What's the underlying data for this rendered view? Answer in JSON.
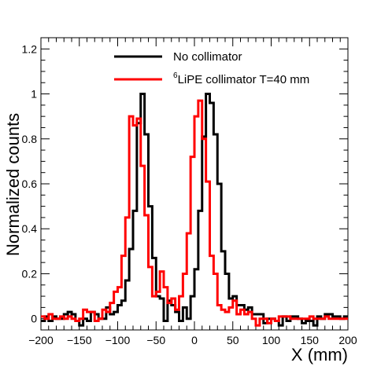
{
  "chart_data": {
    "type": "line",
    "xlabel": "X (mm)",
    "ylabel": "Normalized counts",
    "xlim": [
      -200,
      200
    ],
    "ylim": [
      -0.05,
      1.25
    ],
    "x_ticks": [
      -200,
      -150,
      -100,
      -50,
      0,
      50,
      100,
      150,
      200
    ],
    "x_tick_labels": [
      "−200",
      "−150",
      "−100",
      "−50",
      "0",
      "50",
      "100",
      "150",
      "200"
    ],
    "y_ticks": [
      0,
      0.2,
      0.4,
      0.6,
      0.8,
      1,
      1.2
    ],
    "y_tick_labels": [
      "0",
      "0.2",
      "0.4",
      "0.6",
      "0.8",
      "1",
      "1.2"
    ],
    "legend_placement": "top-center",
    "bin_width": 5,
    "bin_start": -200,
    "series": [
      {
        "name": "No collimator",
        "legend_label": "No collimator",
        "color": "#000000",
        "values": [
          -0.01,
          0.01,
          -0.01,
          0.01,
          0.0,
          0.0,
          0.02,
          0.03,
          0.02,
          -0.01,
          -0.03,
          0.0,
          -0.01,
          0.03,
          0.02,
          0.0,
          0.0,
          0.05,
          0.02,
          0.03,
          0.06,
          0.08,
          0.17,
          0.31,
          0.48,
          0.87,
          1.0,
          0.82,
          0.5,
          0.27,
          0.1,
          0.09,
          -0.01,
          0.08,
          0.06,
          0.03,
          -0.01,
          0.05,
          0.0,
          0.1,
          0.22,
          0.48,
          0.81,
          1.0,
          0.96,
          0.82,
          0.6,
          0.3,
          0.2,
          0.09,
          0.1,
          0.06,
          0.06,
          0.04,
          0.05,
          0.02,
          0.02,
          0.02,
          -0.02,
          0.0,
          0.0,
          -0.01,
          -0.03,
          0.01,
          -0.01,
          0.01,
          0.01,
          0.0,
          -0.02,
          -0.01,
          -0.01,
          -0.03,
          0.01,
          0.0,
          0.02,
          0.02,
          0.01,
          0.01,
          0.0,
          0.01
        ]
      },
      {
        "name": "6LiPE collimator T=40 mm",
        "legend_label_sup": "6",
        "legend_label": "LiPE collimator T=40 mm",
        "color": "#ff0000",
        "values": [
          0.01,
          0.0,
          0.02,
          0.0,
          0.0,
          0.01,
          0.0,
          0.01,
          0.0,
          -0.01,
          0.0,
          0.04,
          0.03,
          0.03,
          -0.01,
          0.0,
          0.04,
          0.03,
          0.07,
          0.12,
          0.14,
          0.28,
          0.45,
          0.9,
          0.86,
          0.89,
          0.68,
          0.46,
          0.23,
          0.1,
          0.12,
          0.21,
          0.14,
          0.07,
          0.09,
          0.04,
          0.1,
          0.2,
          0.38,
          0.72,
          0.9,
          0.97,
          0.8,
          0.61,
          0.28,
          0.2,
          0.06,
          0.04,
          0.03,
          0.05,
          0.08,
          0.02,
          0.04,
          0.02,
          0.03,
          0.0,
          -0.03,
          0.0,
          0.0,
          -0.02,
          0.0,
          -0.01,
          0.01,
          0.01,
          0.01,
          0.0,
          0.0,
          0.0,
          0.0,
          0.0,
          0.01,
          0.0,
          0.0,
          0.0,
          0.01,
          0.0,
          0.0,
          0.0,
          0.0,
          0.0
        ]
      }
    ]
  }
}
